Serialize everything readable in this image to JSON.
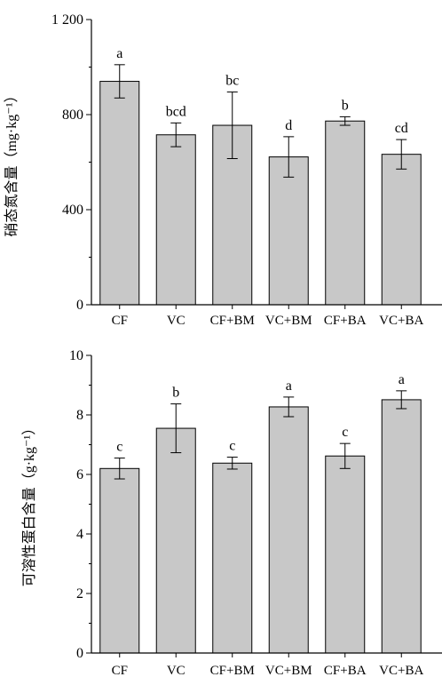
{
  "chart_data": [
    {
      "type": "bar",
      "title": "",
      "xlabel": "",
      "ylabel": "硝态氮含量（mg·kg⁻¹）",
      "ylim": [
        0,
        1200
      ],
      "yticks": [
        0,
        400,
        800,
        1200
      ],
      "ytick_labels": [
        "0",
        "400",
        "800",
        "1 200"
      ],
      "categories": [
        "CF",
        "VC",
        "CF+BM",
        "VC+BM",
        "CF+BA",
        "VC+BA"
      ],
      "values": [
        940,
        715,
        755,
        622,
        773,
        633
      ],
      "errors": [
        70,
        50,
        140,
        85,
        18,
        62
      ],
      "letters": [
        "a",
        "bcd",
        "bc",
        "d",
        "b",
        "cd"
      ],
      "bar_color": "#c8c8c8",
      "grid": false
    },
    {
      "type": "bar",
      "title": "",
      "xlabel": "",
      "ylabel": "可溶性蛋白含量（g·kg⁻¹）",
      "ylim": [
        0,
        10
      ],
      "yticks": [
        0,
        2,
        4,
        6,
        8,
        10
      ],
      "ytick_labels": [
        "0",
        "2",
        "4",
        "6",
        "8",
        "10"
      ],
      "categories": [
        "CF",
        "VC",
        "CF+BM",
        "VC+BM",
        "CF+BA",
        "VC+BA"
      ],
      "values": [
        6.2,
        7.55,
        6.38,
        8.27,
        6.62,
        8.51
      ],
      "errors": [
        0.35,
        0.82,
        0.2,
        0.33,
        0.42,
        0.3
      ],
      "letters": [
        "c",
        "b",
        "c",
        "a",
        "c",
        "a"
      ],
      "bar_color": "#c8c8c8",
      "grid": false
    }
  ]
}
